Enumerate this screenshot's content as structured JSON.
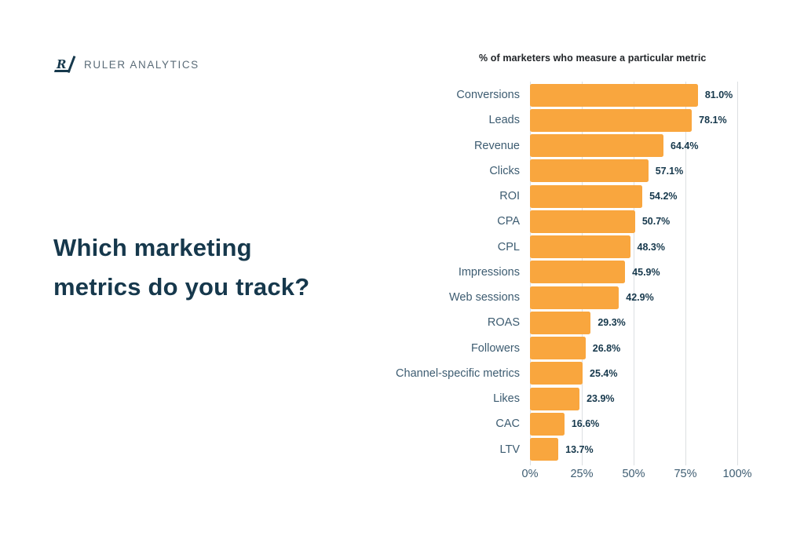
{
  "logo": {
    "icon": "ruler-analytics-logomark",
    "text": "RULER ANALYTICS"
  },
  "headline": "Which marketing metrics do you track?",
  "chart_data": {
    "type": "bar",
    "orientation": "horizontal",
    "title": "% of marketers who measure a particular metric",
    "categories": [
      "Conversions",
      "Leads",
      "Revenue",
      "Clicks",
      "ROI",
      "CPA",
      "CPL",
      "Impressions",
      "Web sessions",
      "ROAS",
      "Followers",
      "Channel-specific metrics",
      "Likes",
      "CAC",
      "LTV"
    ],
    "values": [
      81.0,
      78.1,
      64.4,
      57.1,
      54.2,
      50.7,
      48.3,
      45.9,
      42.9,
      29.3,
      26.8,
      25.4,
      23.9,
      16.6,
      13.7
    ],
    "value_labels": [
      "81.0%",
      "78.1%",
      "64.4%",
      "57.1%",
      "54.2%",
      "50.7%",
      "48.3%",
      "45.9%",
      "42.9%",
      "29.3%",
      "26.8%",
      "25.4%",
      "23.9%",
      "16.6%",
      "13.7%"
    ],
    "x_ticks": [
      {
        "label": "0%",
        "value": 0
      },
      {
        "label": "25%",
        "value": 25
      },
      {
        "label": "50%",
        "value": 50
      },
      {
        "label": "75%",
        "value": 75
      },
      {
        "label": "100%",
        "value": 100
      }
    ],
    "xlim": [
      0,
      100
    ],
    "grid": true,
    "legend": false,
    "bar_color": "#F9A63E"
  },
  "colors": {
    "background": "#FFFFFF",
    "bar": "#F9A63E",
    "headline_text": "#16384C",
    "category_text": "#3D5C71",
    "value_text": "#16384C",
    "axis_text": "#3D5C71",
    "chart_title_text": "#212529",
    "gridline": "#DCDFE2",
    "logo_text": "#5B6C78",
    "logo_mark": "#16384C"
  }
}
